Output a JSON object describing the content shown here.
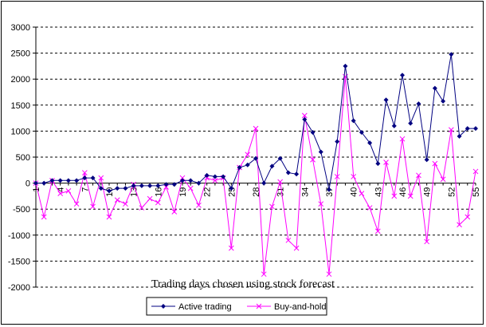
{
  "chart_data": {
    "type": "line",
    "title": "",
    "xlabel": "Trading days chosen using stock forecast",
    "ylabel": "",
    "ylim": [
      -2000,
      3000
    ],
    "y_ticks": [
      "3000",
      "2500",
      "2000",
      "1500",
      "1000",
      "500",
      "0",
      "-500",
      "-1000",
      "-1500",
      "-2000"
    ],
    "grid": "horizontal-dashed",
    "legend_position": "bottom-center",
    "x": [
      1,
      2,
      3,
      4,
      5,
      6,
      7,
      8,
      9,
      10,
      11,
      12,
      13,
      14,
      15,
      16,
      17,
      18,
      19,
      20,
      21,
      22,
      23,
      24,
      25,
      26,
      27,
      28,
      29,
      30,
      31,
      32,
      33,
      34,
      35,
      36,
      37,
      38,
      39,
      40,
      41,
      42,
      43,
      44,
      45,
      46,
      47,
      48,
      49,
      50,
      51,
      52,
      53,
      54,
      55
    ],
    "x_tick_labels": [
      "1",
      "4",
      "7",
      "10",
      "13",
      "16",
      "19",
      "22",
      "25",
      "28",
      "31",
      "34",
      "37",
      "40",
      "43",
      "46",
      "49",
      "52",
      "55"
    ],
    "series": [
      {
        "name": "Active trading",
        "color": "#000080",
        "marker": "diamond",
        "values": [
          0,
          0,
          50,
          50,
          50,
          50,
          100,
          100,
          -100,
          -150,
          -100,
          -100,
          -50,
          -50,
          -50,
          -50,
          -25,
          -25,
          50,
          50,
          0,
          150,
          125,
          125,
          -100,
          300,
          350,
          475,
          0,
          325,
          475,
          200,
          175,
          1225,
          975,
          600,
          -125,
          800,
          2250,
          1200,
          975,
          775,
          375,
          1600,
          1100,
          2075,
          1150,
          1525,
          450,
          1825,
          1575,
          2475,
          900,
          1050,
          1050
        ]
      },
      {
        "name": "Buy-and-hold",
        "color": "#ff00ff",
        "marker": "cross",
        "values": [
          0,
          -650,
          50,
          -200,
          -150,
          -400,
          200,
          -450,
          100,
          -650,
          -325,
          -400,
          -25,
          -475,
          -300,
          -375,
          -75,
          -550,
          100,
          -100,
          -425,
          100,
          50,
          100,
          -1250,
          300,
          550,
          1050,
          -1750,
          -450,
          25,
          -1100,
          -1250,
          1300,
          450,
          -400,
          -1750,
          125,
          2050,
          125,
          -200,
          -475,
          -925,
          400,
          -250,
          850,
          -250,
          150,
          -1125,
          375,
          75,
          1025,
          -800,
          -650,
          225
        ]
      }
    ]
  }
}
